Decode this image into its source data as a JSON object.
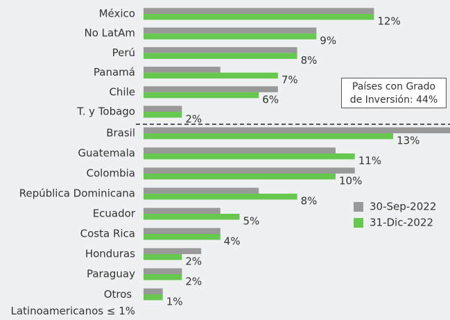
{
  "chart_data": {
    "type": "bar",
    "orientation": "horizontal",
    "categories": [
      "México",
      "No LatAm",
      "Perú",
      "Panamá",
      "Chile",
      "T. y Tobago",
      "Brasil",
      "Guatemala",
      "Colombia",
      "República Dominicana",
      "Ecuador",
      "Costa Rica",
      "Honduras",
      "Paraguay",
      "Otros Latinoamericanos ≤ 1%"
    ],
    "series": [
      {
        "name": "30-Sep-2022",
        "color": "#999999",
        "values": [
          12,
          9,
          8,
          4,
          7,
          2,
          16,
          10,
          11,
          6,
          4,
          4,
          3,
          2,
          1
        ]
      },
      {
        "name": "31-Dic-2022",
        "color": "#66c84e",
        "values": [
          12,
          9,
          8,
          7,
          6,
          2,
          13,
          11,
          10,
          8,
          5,
          4,
          2,
          2,
          1
        ],
        "value_labels": [
          "12%",
          "9%",
          "8%",
          "7%",
          "6%",
          "2%",
          "13%",
          "11%",
          "10%",
          "8%",
          "5%",
          "4%",
          "2%",
          "2%",
          "1%"
        ]
      }
    ],
    "annotation": "Países con Grado de Inversión: 44%",
    "legend": "right"
  }
}
